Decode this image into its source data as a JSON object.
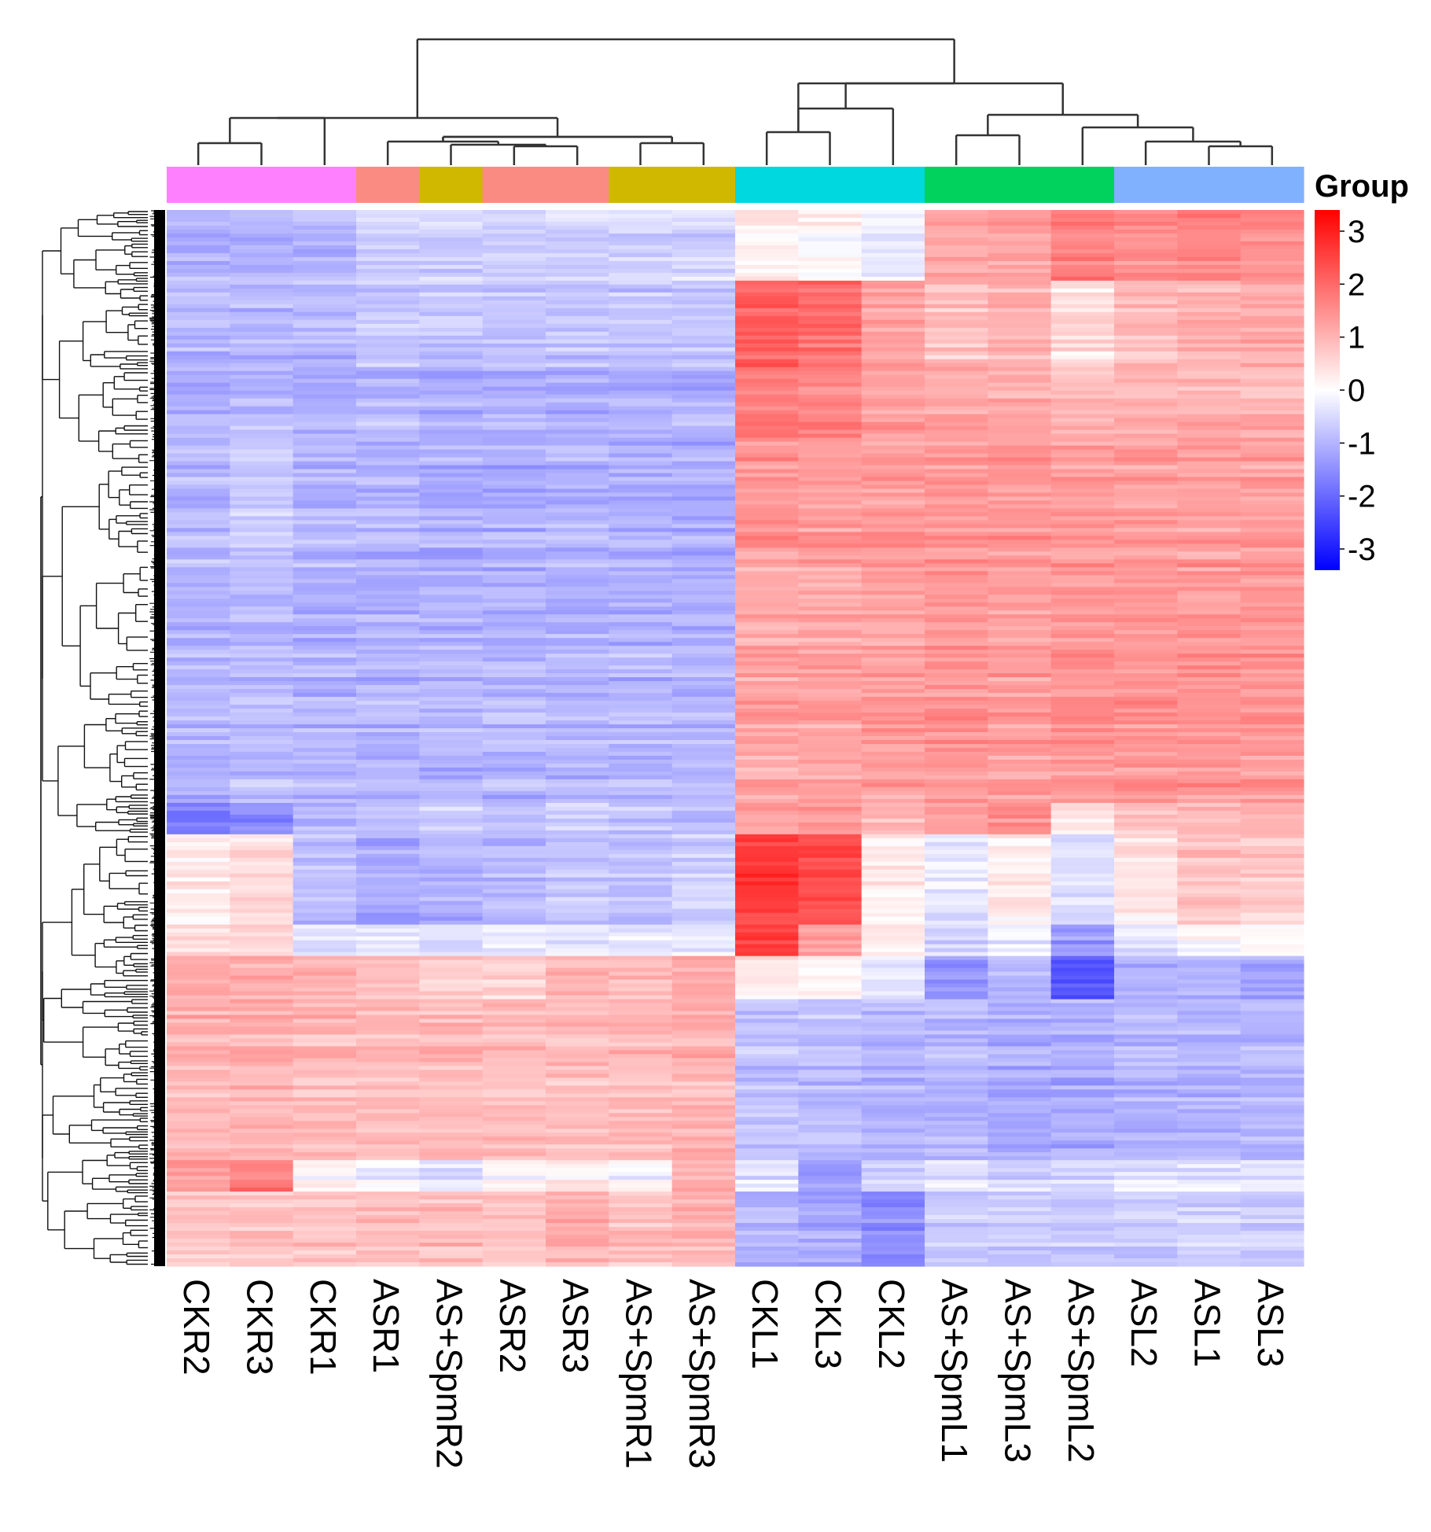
{
  "chart_data": {
    "type": "heatmap",
    "title": "",
    "xlabel": "",
    "ylabel": "",
    "columns": [
      "CKR2",
      "CKR3",
      "CKR1",
      "ASR1",
      "AS+SpmR2",
      "ASR2",
      "ASR3",
      "AS+SpmR1",
      "AS+SpmR3",
      "CKL1",
      "CKL3",
      "CKL2",
      "AS+SpmL1",
      "AS+SpmL3",
      "AS+SpmL2",
      "ASL2",
      "ASL1",
      "ASL3"
    ],
    "column_groups": [
      "CKR",
      "CKR",
      "CKR",
      "ASR",
      "AS+SpmR",
      "ASR",
      "ASR",
      "AS+SpmR",
      "AS+SpmR",
      "CKL",
      "CKL",
      "CKL",
      "AS+SpmL",
      "AS+SpmL",
      "AS+SpmL",
      "ASL",
      "ASL",
      "ASL"
    ],
    "group_colors": {
      "CKR": "#ff80ff",
      "ASR": "#fa8b82",
      "AS+SpmR": "#d1b800",
      "CKL": "#00d8e0",
      "AS+SpmL": "#00d25e",
      "ASL": "#80b1ff"
    },
    "legend": {
      "title": "Group",
      "ticks": [
        3,
        2,
        1,
        0,
        -1,
        -2,
        -3
      ],
      "tick_labels": [
        "3",
        "2",
        "1",
        "0",
        "-1",
        "-2",
        "-3"
      ],
      "range": [
        -3.4,
        3.4
      ],
      "colors": {
        "low": "#0000ff",
        "mid": "#ffffff",
        "high": "#ff0000"
      },
      "placement": "right"
    },
    "row_blocks": [
      {
        "fraction": 0.07,
        "values": [
          -1.0,
          -1.0,
          -1.0,
          -0.6,
          -0.6,
          -0.6,
          -0.6,
          -0.6,
          -0.5,
          0.3,
          0.1,
          -0.3,
          1.2,
          1.2,
          1.7,
          1.5,
          1.6,
          1.5
        ]
      },
      {
        "fraction": 0.085,
        "values": [
          -1.0,
          -1.0,
          -1.0,
          -0.8,
          -0.8,
          -0.8,
          -0.8,
          -0.8,
          -0.8,
          2.1,
          1.9,
          1.2,
          0.8,
          1.0,
          0.4,
          0.9,
          1.0,
          1.1
        ]
      },
      {
        "fraction": 0.07,
        "values": [
          -1.0,
          -0.9,
          -1.0,
          -0.9,
          -1.0,
          -1.0,
          -1.0,
          -1.0,
          -1.0,
          1.8,
          1.7,
          1.3,
          1.2,
          1.2,
          1.0,
          1.1,
          1.1,
          1.1
        ]
      },
      {
        "fraction": 0.125,
        "values": [
          -0.9,
          -0.7,
          -1.0,
          -1.0,
          -1.1,
          -1.1,
          -1.0,
          -1.1,
          -1.1,
          1.4,
          1.3,
          1.3,
          1.4,
          1.4,
          1.3,
          1.3,
          1.3,
          1.3
        ]
      },
      {
        "fraction": 0.24,
        "values": [
          -1.0,
          -0.9,
          -1.0,
          -1.0,
          -1.0,
          -1.0,
          -1.0,
          -1.0,
          -1.0,
          1.2,
          1.2,
          1.3,
          1.4,
          1.3,
          1.4,
          1.4,
          1.4,
          1.4
        ]
      },
      {
        "fraction": 0.03,
        "values": [
          -1.8,
          -1.6,
          -1.0,
          -0.9,
          -0.7,
          -0.8,
          -0.6,
          -0.8,
          -0.9,
          1.2,
          1.3,
          1.0,
          1.3,
          1.5,
          0.4,
          0.8,
          0.9,
          1.0
        ]
      },
      {
        "fraction": 0.09,
        "values": [
          0.2,
          0.4,
          -0.9,
          -1.2,
          -1.1,
          -1.0,
          -0.8,
          -0.9,
          -0.7,
          2.6,
          2.3,
          0.2,
          -0.3,
          0.2,
          -0.5,
          0.3,
          0.8,
          0.7
        ]
      },
      {
        "fraction": 0.03,
        "values": [
          0.3,
          0.5,
          -0.4,
          -0.4,
          -0.5,
          -0.3,
          -0.3,
          -0.4,
          -0.3,
          2.5,
          1.3,
          0.3,
          -0.6,
          -0.3,
          -1.4,
          -0.4,
          -0.1,
          0.0
        ]
      },
      {
        "fraction": 0.045,
        "values": [
          1.0,
          1.0,
          0.9,
          0.8,
          0.6,
          0.5,
          0.9,
          0.8,
          1.0,
          0.2,
          0.0,
          -0.4,
          -1.5,
          -1.1,
          -2.3,
          -1.2,
          -1.1,
          -1.3
        ]
      },
      {
        "fraction": 0.16,
        "values": [
          1.0,
          1.0,
          0.9,
          0.9,
          0.9,
          0.9,
          0.9,
          0.9,
          1.0,
          -0.8,
          -0.9,
          -1.0,
          -1.0,
          -1.1,
          -1.1,
          -1.0,
          -1.0,
          -1.0
        ]
      },
      {
        "fraction": 0.03,
        "values": [
          1.3,
          1.7,
          0.0,
          -0.2,
          -0.4,
          0.0,
          0.3,
          -0.1,
          0.9,
          -0.4,
          -1.3,
          -0.7,
          -0.4,
          -0.6,
          -0.6,
          -0.4,
          -0.4,
          -0.4
        ]
      },
      {
        "fraction": 0.075,
        "values": [
          0.8,
          0.8,
          0.8,
          0.9,
          0.9,
          0.8,
          1.1,
          0.9,
          1.0,
          -1.0,
          -1.1,
          -1.5,
          -0.6,
          -0.7,
          -0.7,
          -0.6,
          -0.6,
          -0.6
        ]
      }
    ]
  }
}
